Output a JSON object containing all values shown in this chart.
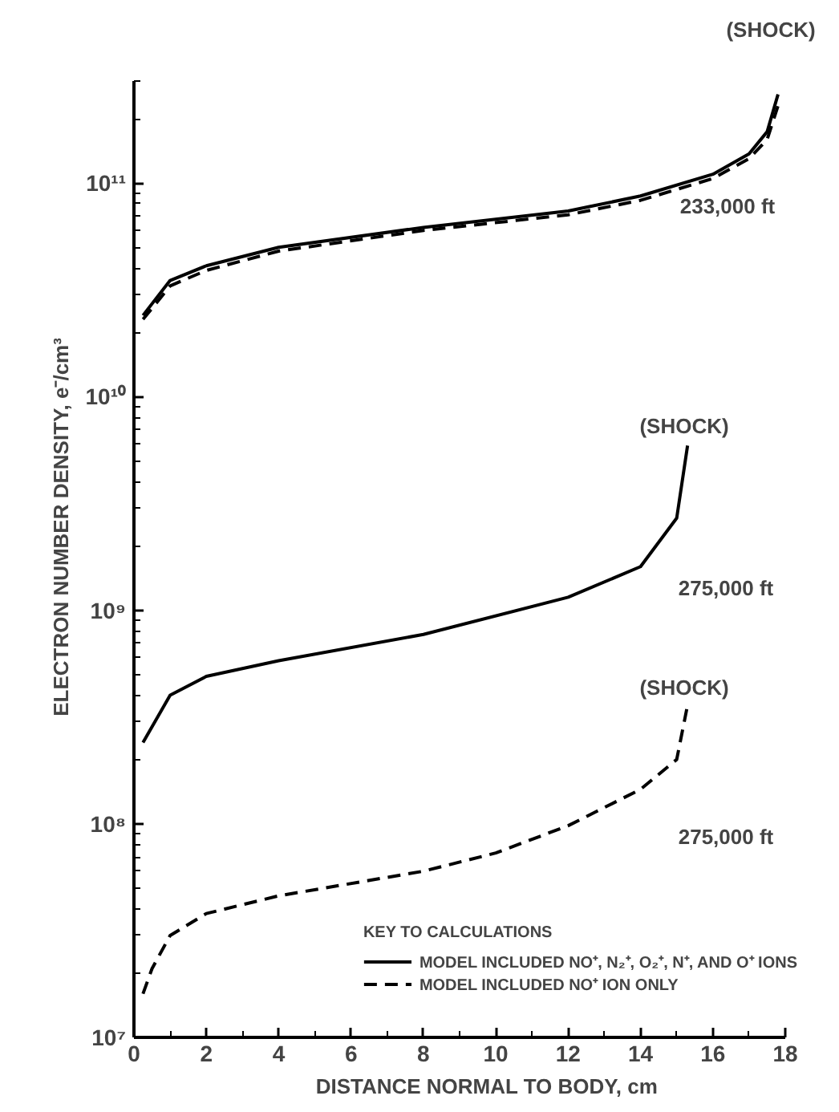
{
  "chart_data": {
    "type": "line",
    "xlabel": "DISTANCE NORMAL TO BODY, cm",
    "ylabel": "ELECTRON NUMBER DENSITY, e⁻/cm³",
    "legend_title": "KEY TO CALCULATIONS",
    "log": "y",
    "legend": "bottom right",
    "grid": false,
    "marker": "none",
    "xlim": [
      0,
      18
    ],
    "xticks": [
      0,
      2,
      4,
      6,
      8,
      10,
      12,
      14,
      16,
      18
    ],
    "ylim": [
      10000000.0,
      300000000000.0
    ],
    "yticks": [
      {
        "value": 10000000.0,
        "label": "10⁷"
      },
      {
        "value": 100000000.0,
        "label": "10⁸"
      },
      {
        "value": 1000000000.0,
        "label": "10⁹"
      },
      {
        "value": 10000000000.0,
        "label": "10¹⁰"
      },
      {
        "value": 100000000000.0,
        "label": "10¹¹"
      }
    ],
    "series": [
      {
        "name": "MODEL INCLUDED NO⁺, N₂⁺, O₂⁺, N⁺, AND O⁺ IONS",
        "color": "#000000",
        "line_style": "solid",
        "x": [
          0.25,
          1,
          2,
          4,
          8,
          12,
          14,
          16,
          17,
          17.5,
          17.8
        ],
        "values": [
          24000000000.0,
          35000000000.0,
          41000000000.0,
          50000000000.0,
          62000000000.0,
          74000000000.0,
          87000000000.0,
          110000000000.0,
          137000000000.0,
          174000000000.0,
          260000000000.0
        ]
      },
      {
        "name": "MODEL INCLUDED NO⁺ ION ONLY",
        "color": "#000000",
        "line_style": "dashed",
        "x": [
          0.25,
          1,
          2,
          4,
          8,
          12,
          14,
          16,
          17,
          17.5,
          17.8
        ],
        "values": [
          23000000000.0,
          33000000000.0,
          39000000000.0,
          48000000000.0,
          60000000000.0,
          71000000000.0,
          83000000000.0,
          105000000000.0,
          130000000000.0,
          160000000000.0,
          230000000000.0
        ]
      },
      {
        "color": "#000000",
        "line_style": "solid",
        "x": [
          0.25,
          1,
          2,
          4,
          8,
          12,
          14,
          15,
          15.3
        ],
        "values": [
          240000000.0,
          400000000.0,
          490000000.0,
          580000000.0,
          770000000.0,
          1150000000.0,
          1600000000.0,
          2700000000.0,
          5900000000.0
        ]
      },
      {
        "color": "#000000",
        "line_style": "dashed",
        "x": [
          0.25,
          0.5,
          1,
          2,
          4,
          8,
          10,
          12,
          14,
          15,
          15.3
        ],
        "values": [
          16000000.0,
          21000000.0,
          30000000.0,
          38000000.0,
          46000000.0,
          60000000.0,
          73000000.0,
          98000000.0,
          145000000.0,
          200000000.0,
          360000000.0
        ]
      }
    ],
    "annotations": [
      "(SHOCK)",
      "233,000 ft",
      "(SHOCK)",
      "275,000 ft",
      "(SHOCK)",
      "275,000 ft"
    ]
  }
}
